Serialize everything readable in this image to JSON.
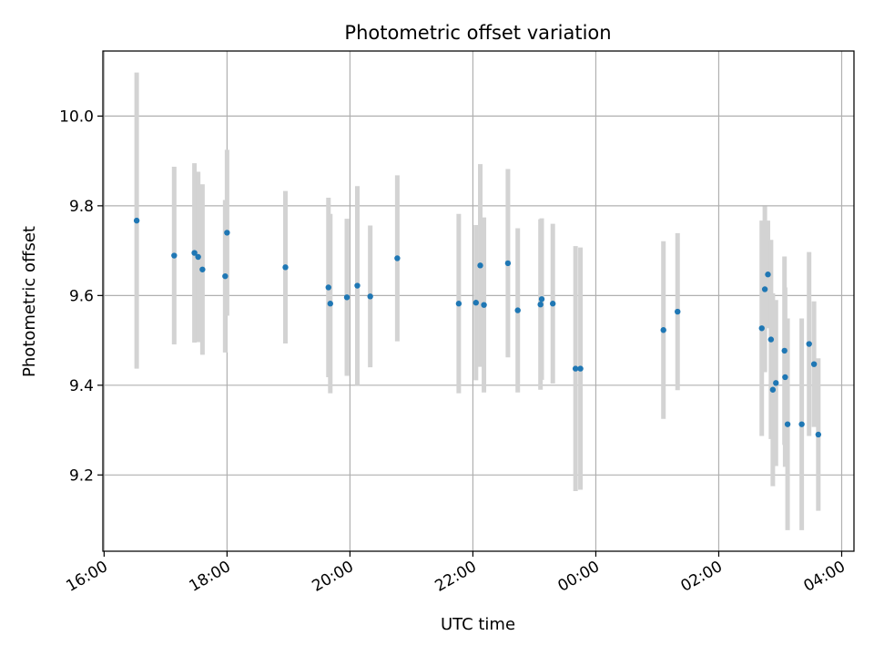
{
  "chart_data": {
    "type": "scatter",
    "title": "Photometric offset variation",
    "xlabel": "UTC time",
    "ylabel": "Photometric offset",
    "x_unit": "hours since 16:00 UTC",
    "xlim": [
      -0.02,
      12.2
    ],
    "ylim": [
      9.03,
      10.145
    ],
    "grid": true,
    "x_ticks": [
      {
        "value": 0,
        "label": "16:00"
      },
      {
        "value": 2,
        "label": "18:00"
      },
      {
        "value": 4,
        "label": "20:00"
      },
      {
        "value": 6,
        "label": "22:00"
      },
      {
        "value": 8,
        "label": "00:00"
      },
      {
        "value": 10,
        "label": "02:00"
      },
      {
        "value": 12,
        "label": "04:00"
      }
    ],
    "y_ticks": [
      {
        "value": 9.2,
        "label": "9.2"
      },
      {
        "value": 9.4,
        "label": "9.4"
      },
      {
        "value": 9.6,
        "label": "9.6"
      },
      {
        "value": 9.8,
        "label": "9.8"
      },
      {
        "value": 10.0,
        "label": "10.0"
      }
    ],
    "colors": {
      "point": "#1f77b4",
      "error": "#d3d3d3",
      "grid": "#b0b0b0",
      "axes": "#000000"
    },
    "series": [
      {
        "name": "offset",
        "points": [
          {
            "x": 0.53,
            "y": 9.767,
            "err": 0.33
          },
          {
            "x": 1.14,
            "y": 9.689,
            "err": 0.198
          },
          {
            "x": 1.47,
            "y": 9.695,
            "err": 0.2
          },
          {
            "x": 1.53,
            "y": 9.686,
            "err": 0.19
          },
          {
            "x": 1.6,
            "y": 9.658,
            "err": 0.19
          },
          {
            "x": 1.97,
            "y": 9.643,
            "err": 0.17
          },
          {
            "x": 2.0,
            "y": 9.74,
            "err": 0.185
          },
          {
            "x": 2.95,
            "y": 9.663,
            "err": 0.17
          },
          {
            "x": 3.65,
            "y": 9.618,
            "err": 0.2
          },
          {
            "x": 3.68,
            "y": 9.582,
            "err": 0.2
          },
          {
            "x": 3.95,
            "y": 9.596,
            "err": 0.175
          },
          {
            "x": 4.12,
            "y": 9.622,
            "err": 0.222
          },
          {
            "x": 4.33,
            "y": 9.598,
            "err": 0.158
          },
          {
            "x": 4.77,
            "y": 9.683,
            "err": 0.185
          },
          {
            "x": 5.77,
            "y": 9.582,
            "err": 0.2
          },
          {
            "x": 6.05,
            "y": 9.584,
            "err": 0.173
          },
          {
            "x": 6.12,
            "y": 9.667,
            "err": 0.226
          },
          {
            "x": 6.18,
            "y": 9.579,
            "err": 0.195
          },
          {
            "x": 6.57,
            "y": 9.672,
            "err": 0.21
          },
          {
            "x": 6.73,
            "y": 9.567,
            "err": 0.183
          },
          {
            "x": 7.1,
            "y": 9.58,
            "err": 0.19
          },
          {
            "x": 7.12,
            "y": 9.592,
            "err": 0.18
          },
          {
            "x": 7.3,
            "y": 9.582,
            "err": 0.178
          },
          {
            "x": 7.67,
            "y": 9.437,
            "err": 0.273
          },
          {
            "x": 7.75,
            "y": 9.437,
            "err": 0.27
          },
          {
            "x": 9.1,
            "y": 9.523,
            "err": 0.198
          },
          {
            "x": 9.33,
            "y": 9.564,
            "err": 0.175
          },
          {
            "x": 10.7,
            "y": 9.527,
            "err": 0.24
          },
          {
            "x": 10.75,
            "y": 9.614,
            "err": 0.185
          },
          {
            "x": 10.8,
            "y": 9.647,
            "err": 0.12
          },
          {
            "x": 10.85,
            "y": 9.502,
            "err": 0.222
          },
          {
            "x": 10.88,
            "y": 9.39,
            "err": 0.215
          },
          {
            "x": 10.93,
            "y": 9.405,
            "err": 0.185
          },
          {
            "x": 11.07,
            "y": 9.477,
            "err": 0.21
          },
          {
            "x": 11.08,
            "y": 9.418,
            "err": 0.2
          },
          {
            "x": 11.12,
            "y": 9.313,
            "err": 0.236
          },
          {
            "x": 11.35,
            "y": 9.313,
            "err": 0.236
          },
          {
            "x": 11.47,
            "y": 9.492,
            "err": 0.205
          },
          {
            "x": 11.55,
            "y": 9.447,
            "err": 0.14
          },
          {
            "x": 11.62,
            "y": 9.29,
            "err": 0.17
          }
        ]
      }
    ]
  }
}
